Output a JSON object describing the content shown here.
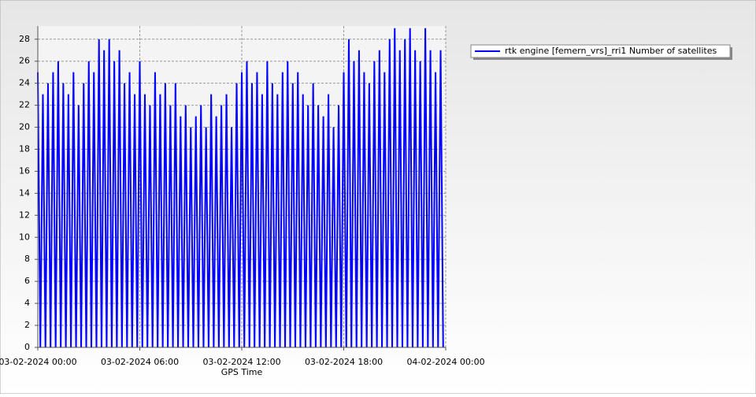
{
  "chart_data": {
    "type": "line",
    "xlabel": "GPS Time",
    "x": [
      0,
      0.15,
      0.3,
      0.45,
      0.6,
      0.75,
      0.9,
      1.05,
      1.2,
      1.35,
      1.5,
      1.65,
      1.8,
      1.95,
      2.1,
      2.25,
      2.4,
      2.55,
      2.7,
      2.85,
      3,
      3.15,
      3.3,
      3.45,
      3.6,
      3.75,
      3.9,
      4.05,
      4.2,
      4.35,
      4.5,
      4.65,
      4.8,
      4.95,
      5.1,
      5.25,
      5.4,
      5.55,
      5.7,
      5.85,
      6,
      6.15,
      6.3,
      6.45,
      6.6,
      6.75,
      6.9,
      7.05,
      7.2,
      7.35,
      7.5,
      7.65,
      7.8,
      7.95,
      8.1,
      8.25,
      8.4,
      8.55,
      8.7,
      8.85,
      9,
      9.15,
      9.3,
      9.45,
      9.6,
      9.75,
      9.9,
      10.05,
      10.2,
      10.35,
      10.5,
      10.65,
      10.8,
      10.95,
      11.1,
      11.25,
      11.4,
      11.55,
      11.7,
      11.85,
      12,
      12.15,
      12.3,
      12.45,
      12.6,
      12.75,
      12.9,
      13.05,
      13.2,
      13.35,
      13.5,
      13.65,
      13.8,
      13.95,
      14.1,
      14.25,
      14.4,
      14.55,
      14.7,
      14.85,
      15,
      15.15,
      15.3,
      15.45,
      15.6,
      15.75,
      15.9,
      16.05,
      16.2,
      16.35,
      16.5,
      16.65,
      16.8,
      16.95,
      17.1,
      17.25,
      17.4,
      17.55,
      17.7,
      17.85,
      18,
      18.15,
      18.3,
      18.45,
      18.6,
      18.75,
      18.9,
      19.05,
      19.2,
      19.35,
      19.5,
      19.65,
      19.8,
      19.95,
      20.1,
      20.25,
      20.4,
      20.55,
      20.7,
      20.85,
      21,
      21.15,
      21.3,
      21.45,
      21.6,
      21.75,
      21.9,
      22.05,
      22.2,
      22.35,
      22.5,
      22.65,
      22.8,
      22.95,
      23.1,
      23.25,
      23.4,
      23.55,
      23.7,
      23.85
    ],
    "series": [
      {
        "name": "rtk engine [femern_vrs]_rri1 Number of satellites",
        "color": "#0000ff",
        "values": [
          25,
          0,
          23,
          0,
          24,
          0,
          25,
          0,
          26,
          0,
          24,
          0,
          23,
          0,
          25,
          0,
          22,
          0,
          24,
          0,
          26,
          0,
          25,
          0,
          28,
          0,
          27,
          0,
          28,
          0,
          26,
          0,
          27,
          0,
          24,
          0,
          25,
          0,
          23,
          0,
          26,
          0,
          23,
          0,
          22,
          0,
          25,
          0,
          23,
          0,
          24,
          0,
          22,
          0,
          24,
          0,
          21,
          0,
          22,
          0,
          20,
          0,
          21,
          0,
          22,
          0,
          20,
          0,
          23,
          0,
          21,
          0,
          22,
          0,
          23,
          0,
          20,
          0,
          24,
          0,
          25,
          0,
          26,
          0,
          24,
          0,
          25,
          0,
          23,
          0,
          26,
          0,
          24,
          0,
          23,
          0,
          25,
          0,
          26,
          0,
          24,
          0,
          25,
          0,
          23,
          0,
          22,
          0,
          24,
          0,
          22,
          0,
          21,
          0,
          23,
          0,
          20,
          0,
          22,
          0,
          25,
          0,
          28,
          0,
          26,
          0,
          27,
          0,
          25,
          0,
          24,
          0,
          26,
          0,
          27,
          0,
          25,
          0,
          28,
          0,
          29,
          0,
          27,
          0,
          28,
          0,
          29,
          0,
          27,
          0,
          26,
          0,
          29,
          0,
          27,
          0,
          25,
          0,
          27,
          0
        ]
      }
    ],
    "xlim": [
      0,
      24
    ],
    "xticks": [
      {
        "value": 0,
        "label": "03-02-2024 00:00"
      },
      {
        "value": 6,
        "label": "03-02-2024 06:00"
      },
      {
        "value": 12,
        "label": "03-02-2024 12:00"
      },
      {
        "value": 18,
        "label": "03-02-2024 18:00"
      },
      {
        "value": 24,
        "label": "04-02-2024 00:00"
      }
    ],
    "ylim": [
      0,
      29.2
    ],
    "yticks": [
      0,
      2,
      4,
      6,
      8,
      10,
      12,
      14,
      16,
      18,
      20,
      22,
      24,
      26,
      28
    ],
    "grid": true
  }
}
